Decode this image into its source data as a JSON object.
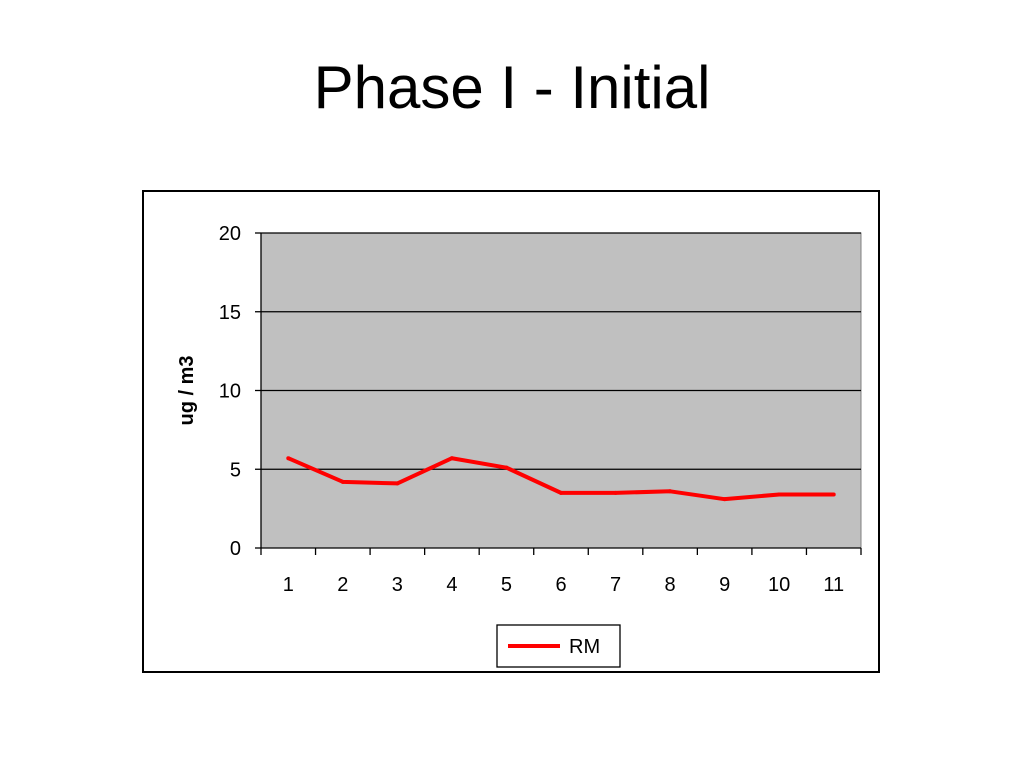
{
  "slide": {
    "title": "Phase I - Initial"
  },
  "chart_data": {
    "type": "line",
    "title": "",
    "xlabel": "",
    "ylabel": "ug / m3",
    "categories": [
      "1",
      "2",
      "3",
      "4",
      "5",
      "6",
      "7",
      "8",
      "9",
      "10",
      "11"
    ],
    "series": [
      {
        "name": "RM",
        "color": "#ff0000",
        "values": [
          5.7,
          4.2,
          4.1,
          5.7,
          5.1,
          3.5,
          3.5,
          3.6,
          3.1,
          3.4,
          3.4
        ]
      }
    ],
    "ylim": [
      0,
      20
    ],
    "yticks": [
      0,
      5,
      10,
      15,
      20
    ],
    "grid": true,
    "plot_background": "#c0c0c0",
    "legend_position": "bottom"
  }
}
